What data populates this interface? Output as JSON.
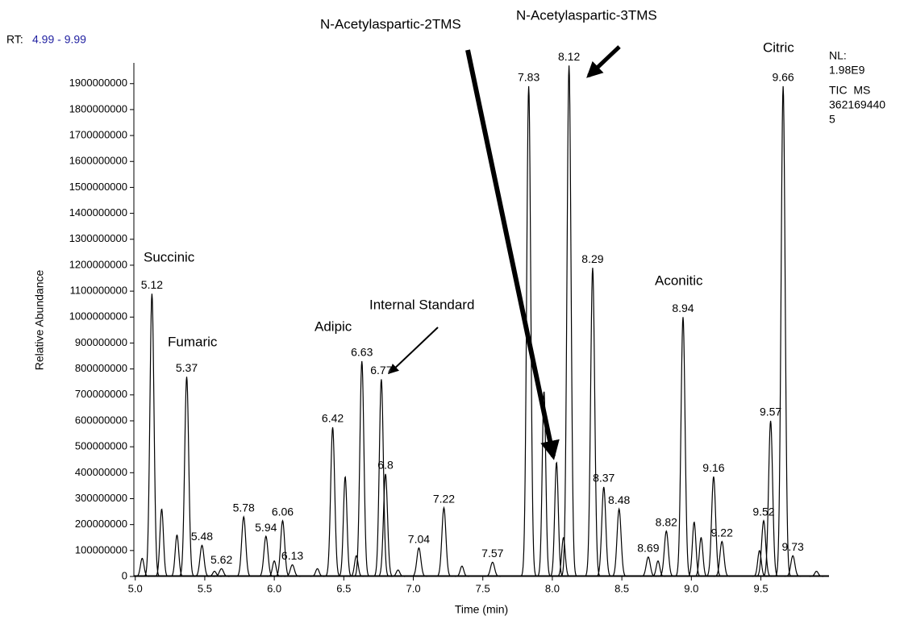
{
  "chart_data": {
    "type": "chromatogram",
    "rt_label": "RT:",
    "rt_range": "4.99 - 9.99",
    "nl_lines": [
      "NL:",
      "1.98E9",
      "TIC  MS",
      "362169440",
      "5"
    ],
    "ylabel": "Relative Abundance",
    "xlabel": "Time (min)",
    "xlim": [
      4.99,
      9.99
    ],
    "xticks": [
      {
        "value": 5,
        "label": "5.0"
      },
      {
        "value": 5.5,
        "label": "5.5"
      },
      {
        "value": 6,
        "label": "6.0"
      },
      {
        "value": 6.5,
        "label": "6.5"
      },
      {
        "value": 7,
        "label": "7.0"
      },
      {
        "value": 7.5,
        "label": "7.5"
      },
      {
        "value": 8,
        "label": "8.0"
      },
      {
        "value": 8.5,
        "label": "8.5"
      },
      {
        "value": 9,
        "label": "9.0"
      },
      {
        "value": 9.5,
        "label": "9.5"
      }
    ],
    "ylim": [
      0,
      1980000000
    ],
    "yticks": [
      0,
      100000000,
      200000000,
      300000000,
      400000000,
      500000000,
      600000000,
      700000000,
      800000000,
      900000000,
      1000000000,
      1100000000,
      1200000000,
      1300000000,
      1400000000,
      1500000000,
      1600000000,
      1700000000,
      1800000000,
      1900000000
    ],
    "color": "#000000",
    "label_color": "#1f1fa0",
    "x": [
      5.12,
      5.37,
      5.48,
      5.62,
      5.78,
      5.94,
      6.06,
      6.13,
      6.42,
      6.63,
      6.77,
      6.8,
      7.04,
      7.22,
      7.57,
      7.83,
      8.12,
      8.29,
      8.37,
      8.48,
      8.69,
      8.82,
      8.94,
      9.16,
      9.22,
      9.52,
      9.57,
      9.66,
      9.73
    ],
    "values": [
      1090000000,
      770000000,
      120000000,
      30000000,
      230000000,
      155000000,
      215000000,
      45000000,
      575000000,
      830000000,
      760000000,
      395000000,
      110000000,
      265000000,
      55000000,
      1890000000,
      1970000000,
      1190000000,
      345000000,
      260000000,
      75000000,
      175000000,
      1000000000,
      385000000,
      135000000,
      215000000,
      600000000,
      1890000000,
      80000000
    ],
    "minor_x": [
      5.05,
      5.19,
      5.3,
      5.57,
      6.0,
      6.31,
      6.51,
      6.59,
      6.89,
      7.35,
      7.94,
      8.03,
      8.08,
      8.76,
      9.02,
      9.07,
      9.49,
      9.9
    ],
    "minor_values": [
      70000000,
      260000000,
      160000000,
      20000000,
      60000000,
      30000000,
      385000000,
      80000000,
      25000000,
      40000000,
      715000000,
      440000000,
      150000000,
      60000000,
      210000000,
      150000000,
      100000000,
      20000000
    ],
    "annotations": [
      "Succinic",
      "Fumaric",
      "Adipic",
      "Internal Standard",
      "N-Acetylaspartic-2TMS",
      "N-Acetylaspartic-3TMS",
      "Aconitic",
      "Citric"
    ]
  }
}
